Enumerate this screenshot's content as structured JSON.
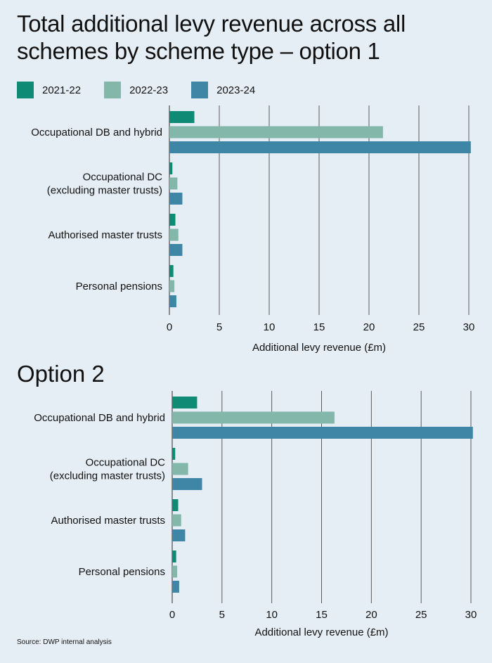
{
  "title": "Total additional levy revenue across all schemes by scheme type – option 1",
  "subtitle": "Option 2",
  "source": "Source: DWP internal analysis",
  "legend": [
    {
      "label": "2021-22",
      "color": "#0f8a74"
    },
    {
      "label": "2022-23",
      "color": "#82b7aa"
    },
    {
      "label": "2023-24",
      "color": "#3f86a6"
    }
  ],
  "chart_data": [
    {
      "type": "bar",
      "orientation": "horizontal",
      "categories": [
        "Occupational DB and hybrid",
        "Occupational DC\n(excluding master trusts)",
        "Authorised master trusts",
        "Personal pensions"
      ],
      "series": [
        {
          "name": "2021-22",
          "values": [
            2.5,
            0.3,
            0.6,
            0.4
          ]
        },
        {
          "name": "2022-23",
          "values": [
            21.4,
            0.8,
            0.9,
            0.5
          ]
        },
        {
          "name": "2023-24",
          "values": [
            30.2,
            1.3,
            1.3,
            0.7
          ]
        }
      ],
      "xlabel": "Additional levy revenue (£m)",
      "xlim": [
        0,
        30
      ],
      "xticks": [
        "0",
        "5",
        "10",
        "15",
        "20",
        "25",
        "30"
      ],
      "grid": "vertical"
    },
    {
      "type": "bar",
      "orientation": "horizontal",
      "categories": [
        "Occupational DB and hybrid",
        "Occupational DC\n(excluding master trusts)",
        "Authorised master trusts",
        "Personal pensions"
      ],
      "series": [
        {
          "name": "2021-22",
          "values": [
            2.5,
            0.3,
            0.6,
            0.4
          ]
        },
        {
          "name": "2022-23",
          "values": [
            16.3,
            1.6,
            0.9,
            0.5
          ]
        },
        {
          "name": "2023-24",
          "values": [
            30.2,
            3.0,
            1.3,
            0.7
          ]
        }
      ],
      "xlabel": "Additional levy revenue (£m)",
      "xlim": [
        0,
        30
      ],
      "xticks": [
        "0",
        "5",
        "10",
        "15",
        "20",
        "25",
        "30"
      ],
      "grid": "vertical"
    }
  ]
}
